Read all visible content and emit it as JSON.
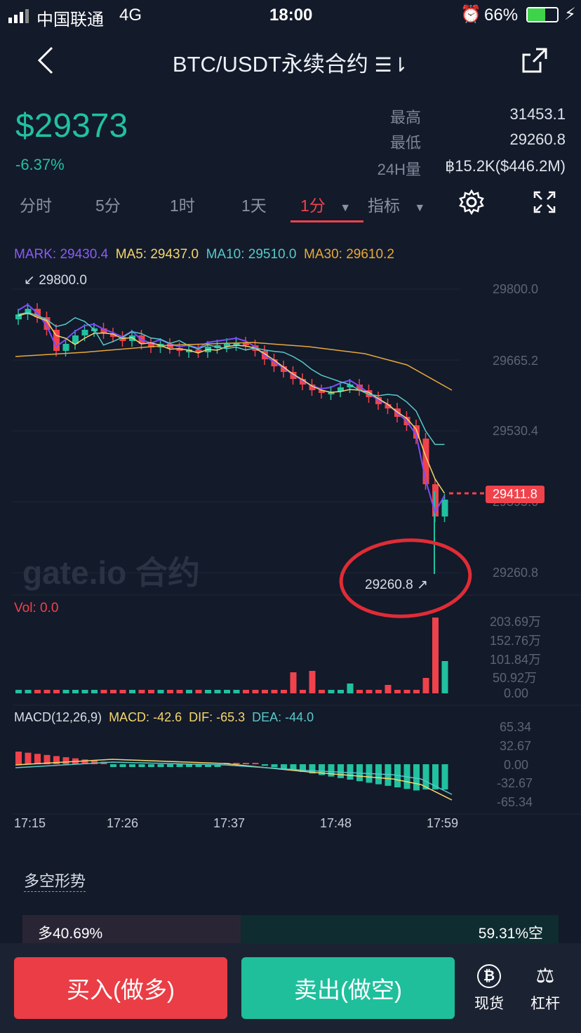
{
  "status": {
    "carrier": "中国联通",
    "network": "4G",
    "time": "18:00",
    "battery": "66%"
  },
  "header": {
    "title": "BTC/USDT永续合约",
    "switch_icon": "swap-icon",
    "back_icon": "back-icon",
    "share_icon": "share-icon"
  },
  "ticker": {
    "price": "$29373",
    "change": "-6.37%",
    "high_label": "最高",
    "high": "31453.1",
    "low_label": "最低",
    "low": "29260.8",
    "vol_label": "24H量",
    "vol": "฿15.2K($446.2M)"
  },
  "tabs": [
    {
      "label": "分时"
    },
    {
      "label": "5分"
    },
    {
      "label": "1时"
    },
    {
      "label": "1天"
    },
    {
      "label": "1分",
      "active": true
    },
    {
      "label": "指标"
    }
  ],
  "legend": {
    "mark": "MARK: 29430.4",
    "ma5": "MA5: 29437.0",
    "ma10": "MA10: 29510.0",
    "ma30": "MA30: 29610.2"
  },
  "price_axis": [
    "29800.0",
    "29665.2",
    "29530.4",
    "29395.6",
    "29260.8"
  ],
  "high_marker": "29800.0",
  "low_marker": "29260.8",
  "last_price_tag": "29411.8",
  "watermark": "gate.io 合约",
  "volume": {
    "label": "Vol: 0.0",
    "axis": [
      "203.69万",
      "152.76万",
      "101.84万",
      "50.92万",
      "0.00"
    ]
  },
  "macd": {
    "label": "MACD(12,26,9)",
    "macd": "MACD: -42.6",
    "dif": "DIF: -65.3",
    "dea": "DEA: -44.0",
    "axis": [
      "65.34",
      "32.67",
      "0.00",
      "-32.67",
      "-65.34"
    ]
  },
  "time_axis": [
    "17:15",
    "17:26",
    "17:37",
    "17:48",
    "17:59"
  ],
  "sentiment": {
    "title": "多空形势",
    "long": "多40.69%",
    "short": "59.31%空",
    "long_pct": 40.69
  },
  "actions": {
    "buy": "买入(做多)",
    "sell": "卖出(做空)",
    "spot": "现货",
    "leverage": "杠杆"
  },
  "colors": {
    "up": "#21c1a0",
    "down": "#f0424b",
    "bg": "#131a2a",
    "mark": "#7c4dff",
    "ma5": "#f5d66a",
    "ma10": "#58c9c9",
    "ma30": "#e8a93a"
  }
}
